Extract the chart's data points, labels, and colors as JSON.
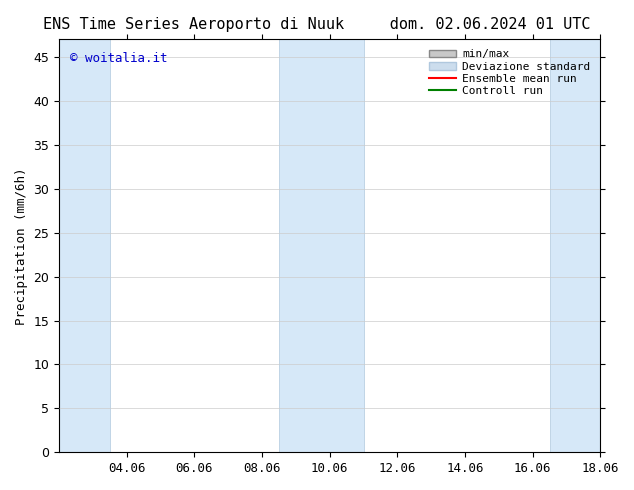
{
  "title_left": "ENS Time Series Aeroporto di Nuuk",
  "title_right": "dom. 02.06.2024 01 UTC",
  "ylabel": "Precipitation (mm/6h)",
  "watermark": "© woitalia.it",
  "watermark_color": "#0000cc",
  "background_color": "#ffffff",
  "plot_bg_color": "#ffffff",
  "ylim": [
    0,
    47
  ],
  "yticks": [
    0,
    5,
    10,
    15,
    20,
    25,
    30,
    35,
    40,
    45
  ],
  "xlim_start": 0,
  "xlim_end": 16,
  "xtick_labels": [
    "04.06",
    "06.06",
    "08.06",
    "10.06",
    "12.06",
    "14.06",
    "16.06",
    "18.06"
  ],
  "xtick_positions": [
    2,
    4,
    6,
    8,
    10,
    12,
    14,
    16
  ],
  "shaded_bands": [
    {
      "x_start": 0,
      "x_end": 1.5
    },
    {
      "x_start": 6.5,
      "x_end": 9.0
    },
    {
      "x_start": 14.5,
      "x_end": 16.0
    }
  ],
  "band_color": "#d6e8f8",
  "band_edge_color": "#b0c8de",
  "minmax_color": "#aaaaaa",
  "std_color": "#ccdded",
  "std_edge_color": "#b0c8de",
  "mean_color": "#ff0000",
  "control_color": "#008000",
  "legend_entries": [
    "min/max",
    "Deviazione standard",
    "Ensemble mean run",
    "Controll run"
  ],
  "title_fontsize": 11,
  "label_fontsize": 9,
  "tick_fontsize": 9
}
